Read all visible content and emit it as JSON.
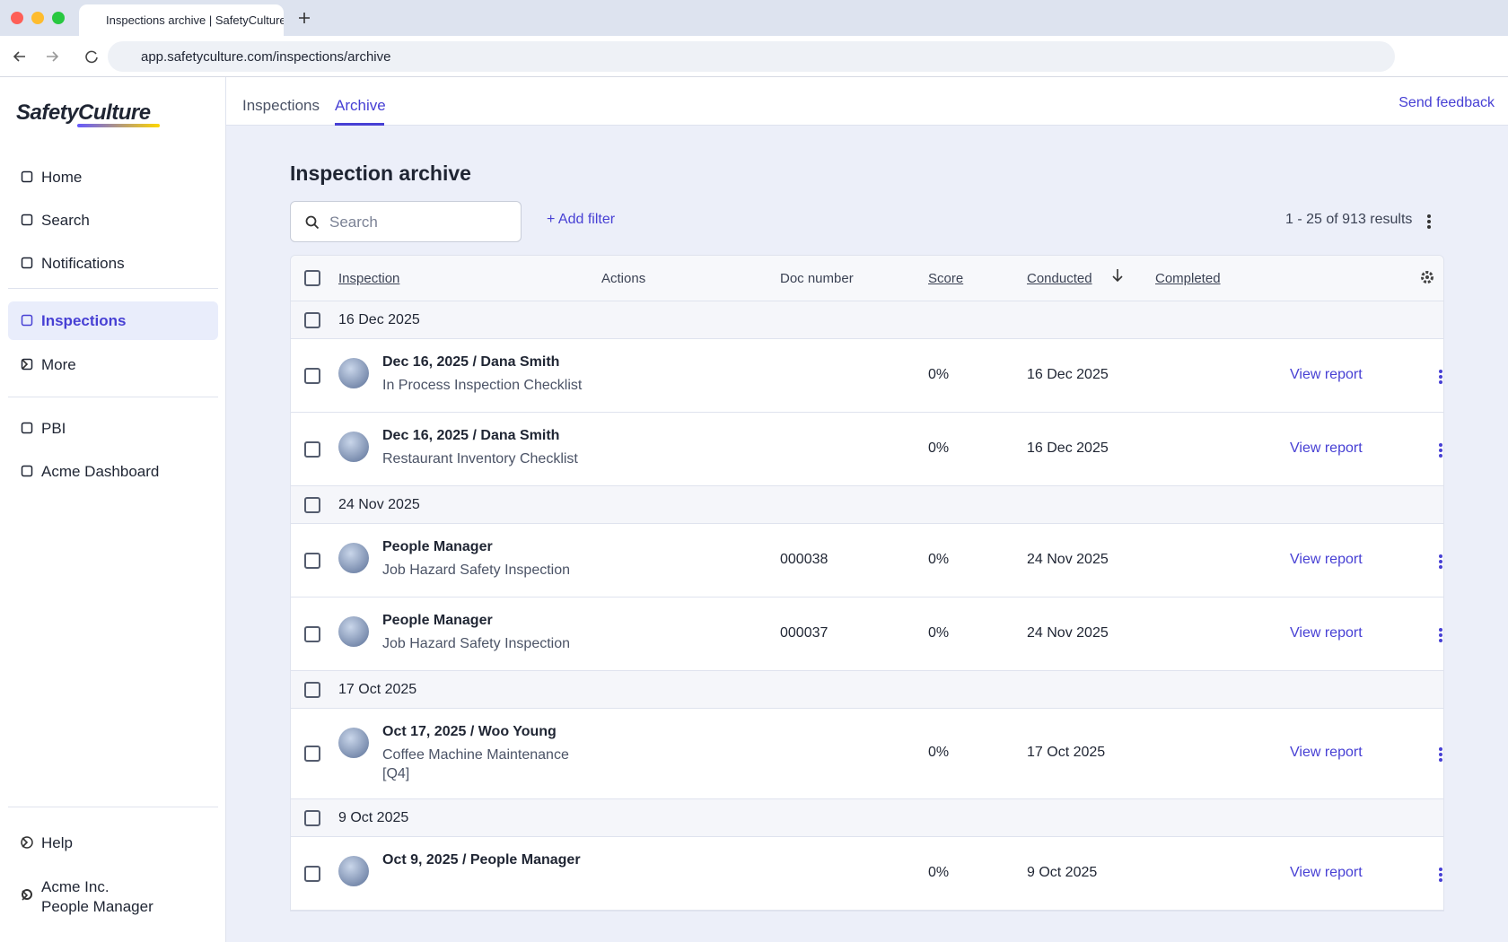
{
  "browser": {
    "tab_title": "Inspections archive | SafetyCulture",
    "url": "app.safetyculture.com/inspections/archive"
  },
  "sidebar": {
    "logo": "SafetyCulture",
    "nav": [
      "Home",
      "Search",
      "Notifications",
      "Inspections",
      "More",
      "PBI",
      "Acme Dashboard"
    ],
    "help": "Help",
    "org": "Acme Inc.",
    "role": "People Manager"
  },
  "tabs": [
    "Inspections",
    "Archive"
  ],
  "feedback": "Send feedback",
  "page": {
    "title": "Inspection archive",
    "search_placeholder": "Search",
    "add_filter": "Add filter",
    "results": "1 - 25 of 913 results"
  },
  "table": {
    "columns": [
      "Inspection",
      "Actions",
      "Doc number",
      "Score",
      "Conducted",
      "Completed"
    ],
    "groups": [
      {
        "date": "16 Dec 2025",
        "rows": [
          {
            "title": "Dec 16, 2025 / Dana Smith",
            "template": "In Process Inspection Checklist",
            "score": "0%",
            "conducted": "16 Dec 2025",
            "action": "View report"
          },
          {
            "title": "Dec 16, 2025 / Dana Smith",
            "template": "Restaurant Inventory Checklist",
            "score": "0%",
            "conducted": "16 Dec 2025",
            "action": "View report"
          }
        ]
      },
      {
        "date": "24 Nov 2025",
        "rows": [
          {
            "title": "People Manager",
            "template": "Job Hazard Safety Inspection",
            "doc": "000038",
            "score": "0%",
            "conducted": "24 Nov 2025",
            "action": "View report"
          },
          {
            "title": "People Manager",
            "template": "Job Hazard Safety Inspection",
            "doc": "000037",
            "score": "0%",
            "conducted": "24 Nov 2025",
            "action": "View report"
          }
        ]
      },
      {
        "date": "17 Oct 2025",
        "rows": [
          {
            "title": "Oct 17, 2025 / Woo Young",
            "template": "Coffee Machine Maintenance [Q4]",
            "score": "0%",
            "conducted": "17 Oct 2025",
            "action": "View report"
          }
        ]
      },
      {
        "date": "9 Oct 2025",
        "rows": [
          {
            "title": "Oct 9, 2025 / People Manager",
            "score": "0%",
            "conducted": "9 Oct 2025",
            "action": "View report"
          }
        ]
      }
    ]
  }
}
